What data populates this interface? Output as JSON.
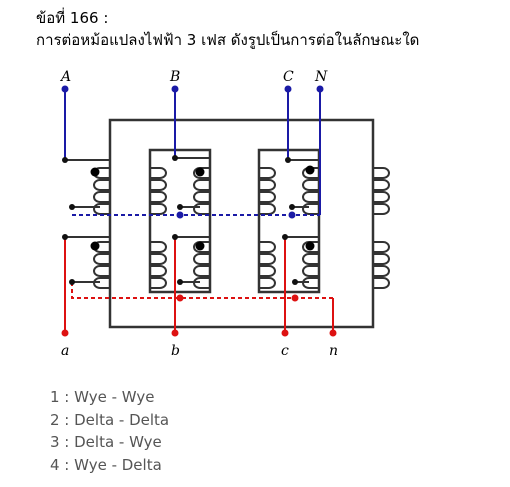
{
  "question": {
    "number": "ข้อที่ 166 :",
    "text": "การต่อหม้อแปลงไฟฟ้า 3 เฟส ดังรูปเป็นการต่อในลักษณะใด"
  },
  "diagram": {
    "primary_terminals": [
      "A",
      "B",
      "C",
      "N"
    ],
    "secondary_terminals": [
      "a",
      "b",
      "c",
      "n"
    ],
    "colors": {
      "core": "#333333",
      "primary_wire": "#1a1aa6",
      "secondary_wire": "#dd1111",
      "coil": "#333333"
    }
  },
  "choices": [
    "1 : Wye - Wye",
    "2 : Delta - Delta",
    "3 : Delta - Wye",
    "4 : Wye - Delta"
  ]
}
